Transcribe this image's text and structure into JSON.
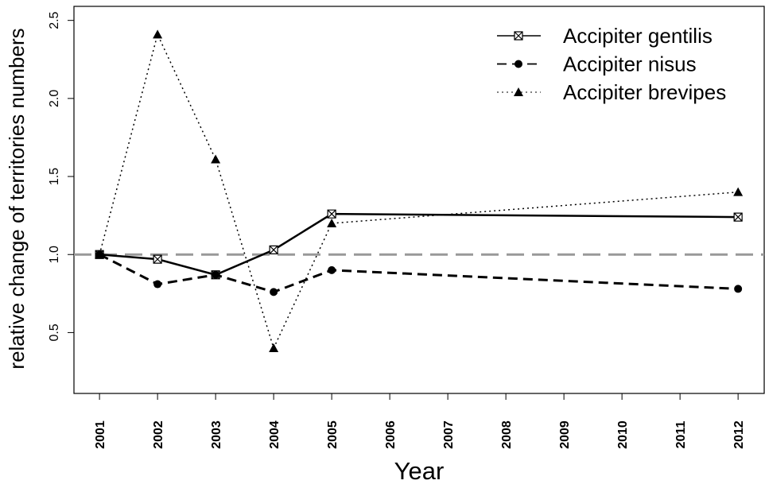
{
  "chart_data": {
    "type": "line",
    "x_label": "Year",
    "y_label": "relative change of territories numbers",
    "x": [
      2001,
      2002,
      2003,
      2004,
      2005,
      2012
    ],
    "series": [
      {
        "name": "Accipiter gentilis",
        "color": "#000000",
        "linestyle": "solid",
        "marker": "square-x",
        "values": [
          1.0,
          0.97,
          0.87,
          1.03,
          1.26,
          1.24
        ]
      },
      {
        "name": "Accipiter nisus",
        "color": "#000000",
        "linestyle": "dashed",
        "marker": "circle",
        "values": [
          1.0,
          0.81,
          0.87,
          0.76,
          0.9,
          0.78
        ]
      },
      {
        "name": "Accipiter brevipes",
        "color": "#000000",
        "linestyle": "dotted",
        "marker": "triangle",
        "values": [
          1.0,
          2.41,
          1.61,
          0.4,
          1.2,
          1.4
        ]
      }
    ],
    "hline": 1,
    "hline_color": "#999999",
    "xlim": [
      2000.56,
      2012.45
    ],
    "xticks": [
      2001,
      2002,
      2003,
      2004,
      2005,
      2006,
      2007,
      2008,
      2009,
      2010,
      2011,
      2012
    ],
    "ylim": [
      0.11,
      2.59
    ],
    "yticks": [
      0.5,
      {
        "value": 1,
        "label": "1.0"
      },
      1.5,
      {
        "value": 2,
        "label": "2.0"
      },
      2.5
    ],
    "legend": "top-right"
  }
}
